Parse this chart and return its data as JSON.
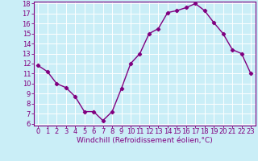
{
  "hours": [
    0,
    1,
    2,
    3,
    4,
    5,
    6,
    7,
    8,
    9,
    10,
    11,
    12,
    13,
    14,
    15,
    16,
    17,
    18,
    19,
    20,
    21,
    22,
    23
  ],
  "values": [
    11.8,
    11.2,
    10.0,
    9.6,
    8.7,
    7.2,
    7.2,
    6.3,
    7.2,
    9.5,
    12.0,
    13.0,
    15.0,
    15.5,
    17.1,
    17.3,
    17.6,
    18.0,
    17.3,
    16.1,
    15.0,
    13.4,
    13.0,
    11.0
  ],
  "line_color": "#800080",
  "marker": "D",
  "marker_size": 2.2,
  "bg_color": "#caeef7",
  "grid_color": "#ffffff",
  "xlabel": "Windchill (Refroidissement éolien,°C)",
  "ylim_min": 6,
  "ylim_max": 18,
  "xlim_min": 0,
  "xlim_max": 23,
  "yticks": [
    6,
    7,
    8,
    9,
    10,
    11,
    12,
    13,
    14,
    15,
    16,
    17,
    18
  ],
  "xticks": [
    0,
    1,
    2,
    3,
    4,
    5,
    6,
    7,
    8,
    9,
    10,
    11,
    12,
    13,
    14,
    15,
    16,
    17,
    18,
    19,
    20,
    21,
    22,
    23
  ],
  "tick_color": "#800080",
  "spine_color": "#800080",
  "label_fontsize": 6.5,
  "tick_fontsize": 6.0,
  "linewidth": 1.0
}
